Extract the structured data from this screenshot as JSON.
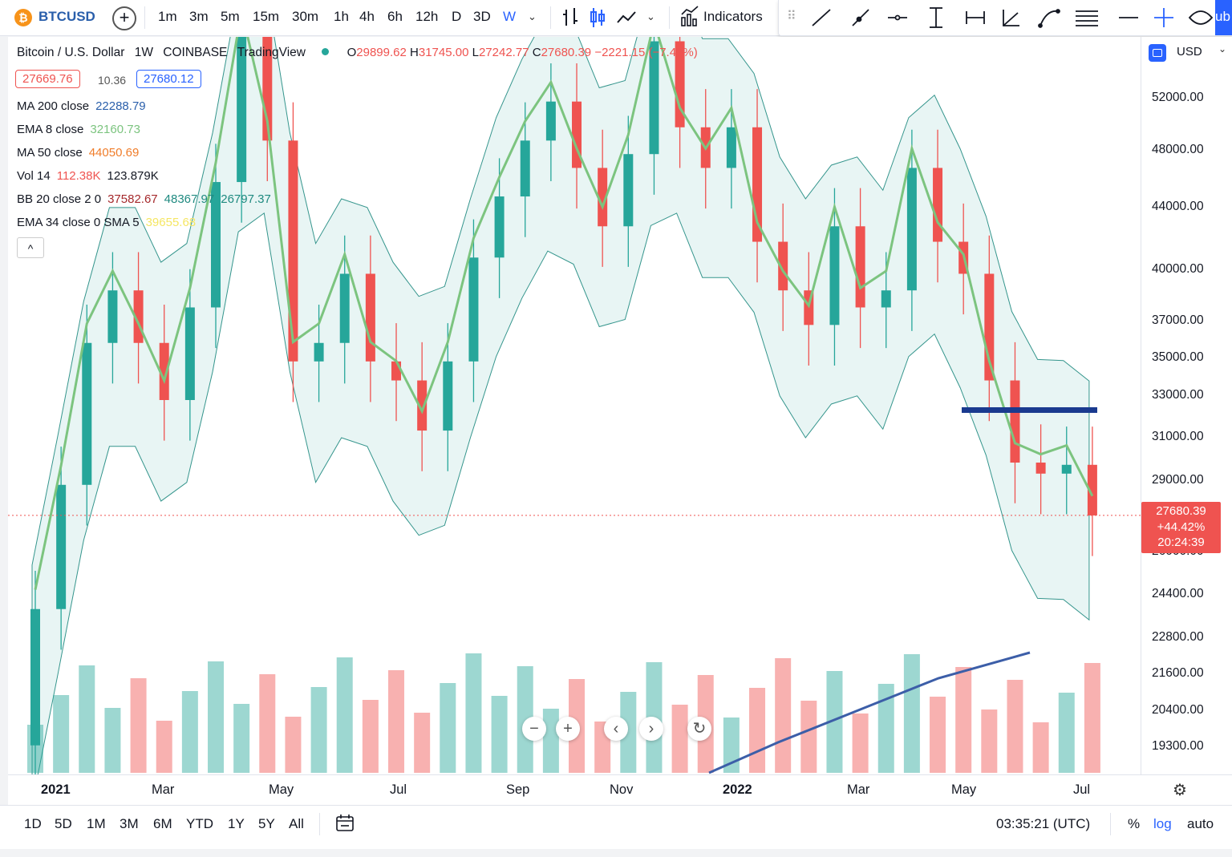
{
  "topbar": {
    "symbol_logo": "₿",
    "symbol": "BTCUSD",
    "add_symbol_icon": "+",
    "intervals": [
      "1m",
      "3m",
      "5m",
      "15m",
      "30m",
      "1h",
      "4h",
      "6h",
      "12h",
      "D",
      "3D",
      "W"
    ],
    "active_interval": "W",
    "indicators_label": "Indicators",
    "cut_label": "ub"
  },
  "legend": {
    "title": "Bitcoin / U.S. Dollar",
    "interval": "1W",
    "exchange": "COINBASE",
    "provider": "TradingView",
    "ohlc": {
      "o_label": "O",
      "o": "29899.62",
      "h_label": "H",
      "h": "31745.00",
      "l_label": "L",
      "l": "27242.77",
      "c_label": "C",
      "c": "27680.39",
      "chg": "−2221.15 (−7.43%)"
    },
    "bid": "27669.76",
    "spread": "10.36",
    "ask": "27680.12",
    "indicators": [
      {
        "name": "MA 200 close",
        "values": [
          "22288.79"
        ],
        "colors": [
          "#2a5fab"
        ]
      },
      {
        "name": "EMA 8 close",
        "values": [
          "32160.73"
        ],
        "colors": [
          "#7cc47f"
        ]
      },
      {
        "name": "MA 50 close",
        "values": [
          "44050.69"
        ],
        "colors": [
          "#f07d2a"
        ]
      },
      {
        "name": "Vol 14",
        "values": [
          "112.38K",
          "123.879K"
        ],
        "colors": [
          "#ef5350",
          "#131722"
        ]
      },
      {
        "name": "BB 20 close 2 0",
        "values": [
          "37582.67",
          "48367.97",
          "26797.37"
        ],
        "colors": [
          "#a5292c",
          "#1f8a80",
          "#1f8a80"
        ]
      },
      {
        "name": "EMA 34 close 0 SMA 5",
        "values": [
          "39655.68"
        ],
        "colors": [
          "#f5e663"
        ]
      }
    ],
    "collapse_icon": "^"
  },
  "price_axis": {
    "currency": "USD",
    "labels": [
      "52000.00",
      "48000.00",
      "44000.00",
      "40000.00",
      "37000.00",
      "35000.00",
      "33000.00",
      "31000.00",
      "29000.00",
      "26000.00",
      "24400.00",
      "22800.00",
      "21600.00",
      "20400.00",
      "19300.00"
    ],
    "last_price": "27680.39",
    "last_change": "+44.42%",
    "countdown": "20:24:39"
  },
  "time_axis": {
    "labels": [
      "2021",
      "Mar",
      "May",
      "Jul",
      "Sep",
      "Nov",
      "2022",
      "Mar",
      "May",
      "Jul"
    ]
  },
  "chart_controls": [
    "zoom-out",
    "zoom-in",
    "scroll-left",
    "scroll-right",
    "reset"
  ],
  "bottombar": {
    "ranges": [
      "1D",
      "5D",
      "1M",
      "3M",
      "6M",
      "YTD",
      "1Y",
      "5Y",
      "All"
    ],
    "clock": "03:35:21 (UTC)",
    "percent": "%",
    "log": "log",
    "auto": "auto"
  },
  "colors": {
    "up": "#26a69a",
    "down": "#ef5350",
    "accent": "#2962ff",
    "hline": "#1a3a8f"
  },
  "chart_data": {
    "type": "candlestick",
    "symbol": "BTCUSD",
    "interval": "1W",
    "ohlc_approx_close_sequence": [
      {
        "x": "2021-01",
        "o": 19500,
        "c": 24000
      },
      {
        "x": "2021-01",
        "o": 24000,
        "c": 29000
      },
      {
        "x": "2021-01",
        "o": 29000,
        "c": 36000
      },
      {
        "x": "2021-02",
        "o": 36000,
        "c": 39000
      },
      {
        "x": "2021-02",
        "o": 39000,
        "c": 36000
      },
      {
        "x": "2021-03",
        "o": 36000,
        "c": 33000
      },
      {
        "x": "2021-03",
        "o": 33000,
        "c": 38000
      },
      {
        "x": "2021-03",
        "o": 38000,
        "c": 46000
      },
      {
        "x": "2021-04",
        "o": 46000,
        "c": 58000
      },
      {
        "x": "2021-05",
        "o": 58000,
        "c": 49000
      },
      {
        "x": "2021-05",
        "o": 49000,
        "c": 35000
      },
      {
        "x": "2021-06",
        "o": 35000,
        "c": 36000
      },
      {
        "x": "2021-06",
        "o": 36000,
        "c": 40000
      },
      {
        "x": "2021-06",
        "o": 40000,
        "c": 35000
      },
      {
        "x": "2021-07",
        "o": 35000,
        "c": 34000
      },
      {
        "x": "2021-07",
        "o": 34000,
        "c": 31500
      },
      {
        "x": "2021-07",
        "o": 31500,
        "c": 35000
      },
      {
        "x": "2021-08",
        "o": 35000,
        "c": 41000
      },
      {
        "x": "2021-08",
        "o": 41000,
        "c": 45000
      },
      {
        "x": "2021-09",
        "o": 45000,
        "c": 49000
      },
      {
        "x": "2021-09",
        "o": 49000,
        "c": 52000
      },
      {
        "x": "2021-10",
        "o": 52000,
        "c": 47000
      },
      {
        "x": "2021-10",
        "o": 47000,
        "c": 43000
      },
      {
        "x": "2021-11",
        "o": 43000,
        "c": 48000
      },
      {
        "x": "2021-11",
        "o": 48000,
        "c": 57000
      },
      {
        "x": "2021-12",
        "o": 57000,
        "c": 50000
      },
      {
        "x": "2021-12",
        "o": 50000,
        "c": 47000
      },
      {
        "x": "2022-01",
        "o": 47000,
        "c": 50000
      },
      {
        "x": "2022-01",
        "o": 50000,
        "c": 42000
      },
      {
        "x": "2022-01",
        "o": 42000,
        "c": 39000
      },
      {
        "x": "2022-02",
        "o": 39000,
        "c": 37000
      },
      {
        "x": "2022-02",
        "o": 37000,
        "c": 43000
      },
      {
        "x": "2022-02",
        "o": 43000,
        "c": 38000
      },
      {
        "x": "2022-03",
        "o": 38000,
        "c": 39000
      },
      {
        "x": "2022-03",
        "o": 39000,
        "c": 47000
      },
      {
        "x": "2022-04",
        "o": 47000,
        "c": 42000
      },
      {
        "x": "2022-04",
        "o": 42000,
        "c": 40000
      },
      {
        "x": "2022-05",
        "o": 40000,
        "c": 34000
      },
      {
        "x": "2022-05",
        "o": 34000,
        "c": 30000
      },
      {
        "x": "2022-05",
        "o": 30000,
        "c": 29500
      },
      {
        "x": "2022-06",
        "o": 29500,
        "c": 29899
      },
      {
        "x": "2022-06",
        "o": 29899,
        "c": 27680
      }
    ],
    "hline_price": 32500,
    "y_scale": "log",
    "ylim": [
      19000,
      56000
    ]
  }
}
